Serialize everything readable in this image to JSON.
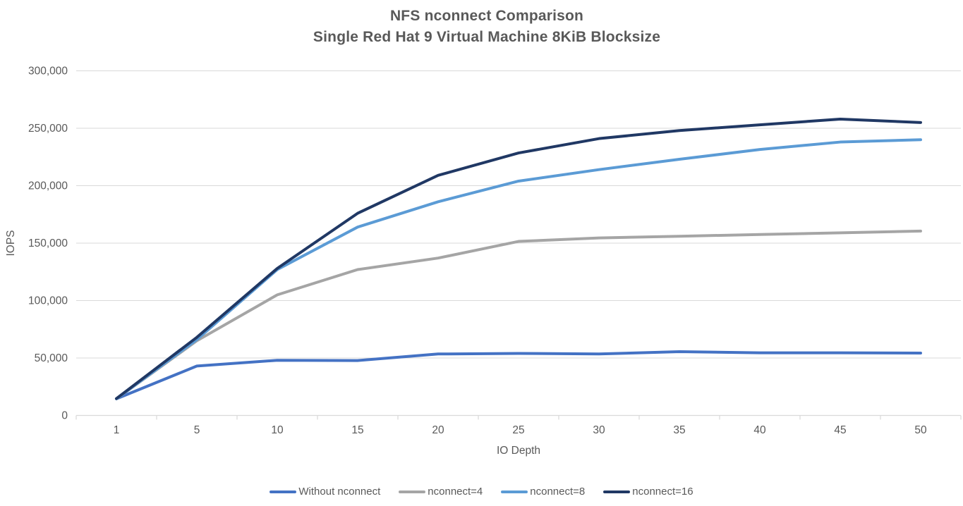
{
  "chart_data": {
    "type": "line",
    "title": "NFS nconnect Comparison",
    "subtitle": "Single Red Hat 9 Virtual Machine 8KiB Blocksize",
    "xlabel": "IO Depth",
    "ylabel": "IOPS",
    "categories": [
      "1",
      "5",
      "10",
      "15",
      "20",
      "25",
      "30",
      "35",
      "40",
      "45",
      "50"
    ],
    "y_ticks": [
      0,
      50000,
      100000,
      150000,
      200000,
      250000,
      300000
    ],
    "y_tick_labels": [
      "0",
      "50,000",
      "100,000",
      "150,000",
      "200,000",
      "250,000",
      "300,000"
    ],
    "ylim": [
      0,
      300000
    ],
    "grid": "horizontal",
    "legend_position": "bottom",
    "text_color": "#595959",
    "grid_color": "#D9D9D9",
    "axis_color": "#D9D9D9",
    "series": [
      {
        "name": "Without nconnect",
        "color": "#4472C4",
        "values": [
          14500,
          43000,
          48000,
          47800,
          53500,
          54000,
          53500,
          55500,
          54500,
          54500,
          54300
        ]
      },
      {
        "name": "nconnect=4",
        "color": "#A5A5A5",
        "values": [
          14500,
          65000,
          105000,
          127000,
          137000,
          151500,
          154500,
          156000,
          157500,
          159000,
          160500
        ]
      },
      {
        "name": "nconnect=8",
        "color": "#5B9BD5",
        "values": [
          14500,
          66000,
          127000,
          164000,
          186000,
          204000,
          214000,
          223000,
          231500,
          238000,
          240000
        ]
      },
      {
        "name": "nconnect=16",
        "color": "#203864",
        "values": [
          14700,
          68000,
          128000,
          176000,
          209000,
          228500,
          241000,
          248000,
          253000,
          258000,
          255000
        ]
      }
    ]
  }
}
